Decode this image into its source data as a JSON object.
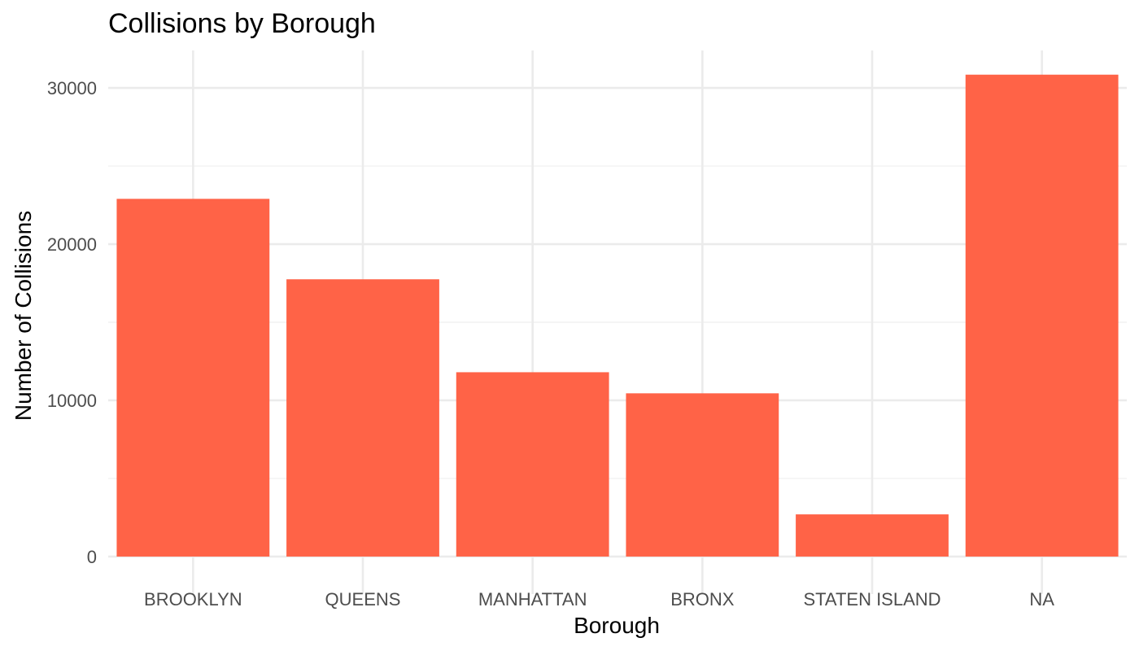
{
  "chart_data": {
    "type": "bar",
    "title": "Collisions by Borough",
    "xlabel": "Borough",
    "ylabel": "Number of Collisions",
    "categories": [
      "BROOKLYN",
      "QUEENS",
      "MANHATTAN",
      "BRONX",
      "STATEN ISLAND",
      "NA"
    ],
    "values": [
      22900,
      17750,
      11800,
      10450,
      2700,
      30850
    ],
    "yticks": [
      0,
      10000,
      20000,
      30000
    ],
    "ytick_labels": [
      "0",
      "10000",
      "20000",
      "30000"
    ],
    "ylim": [
      -2400,
      32400
    ],
    "grid": true,
    "legend": "none",
    "bar_color": "#ff6347"
  }
}
